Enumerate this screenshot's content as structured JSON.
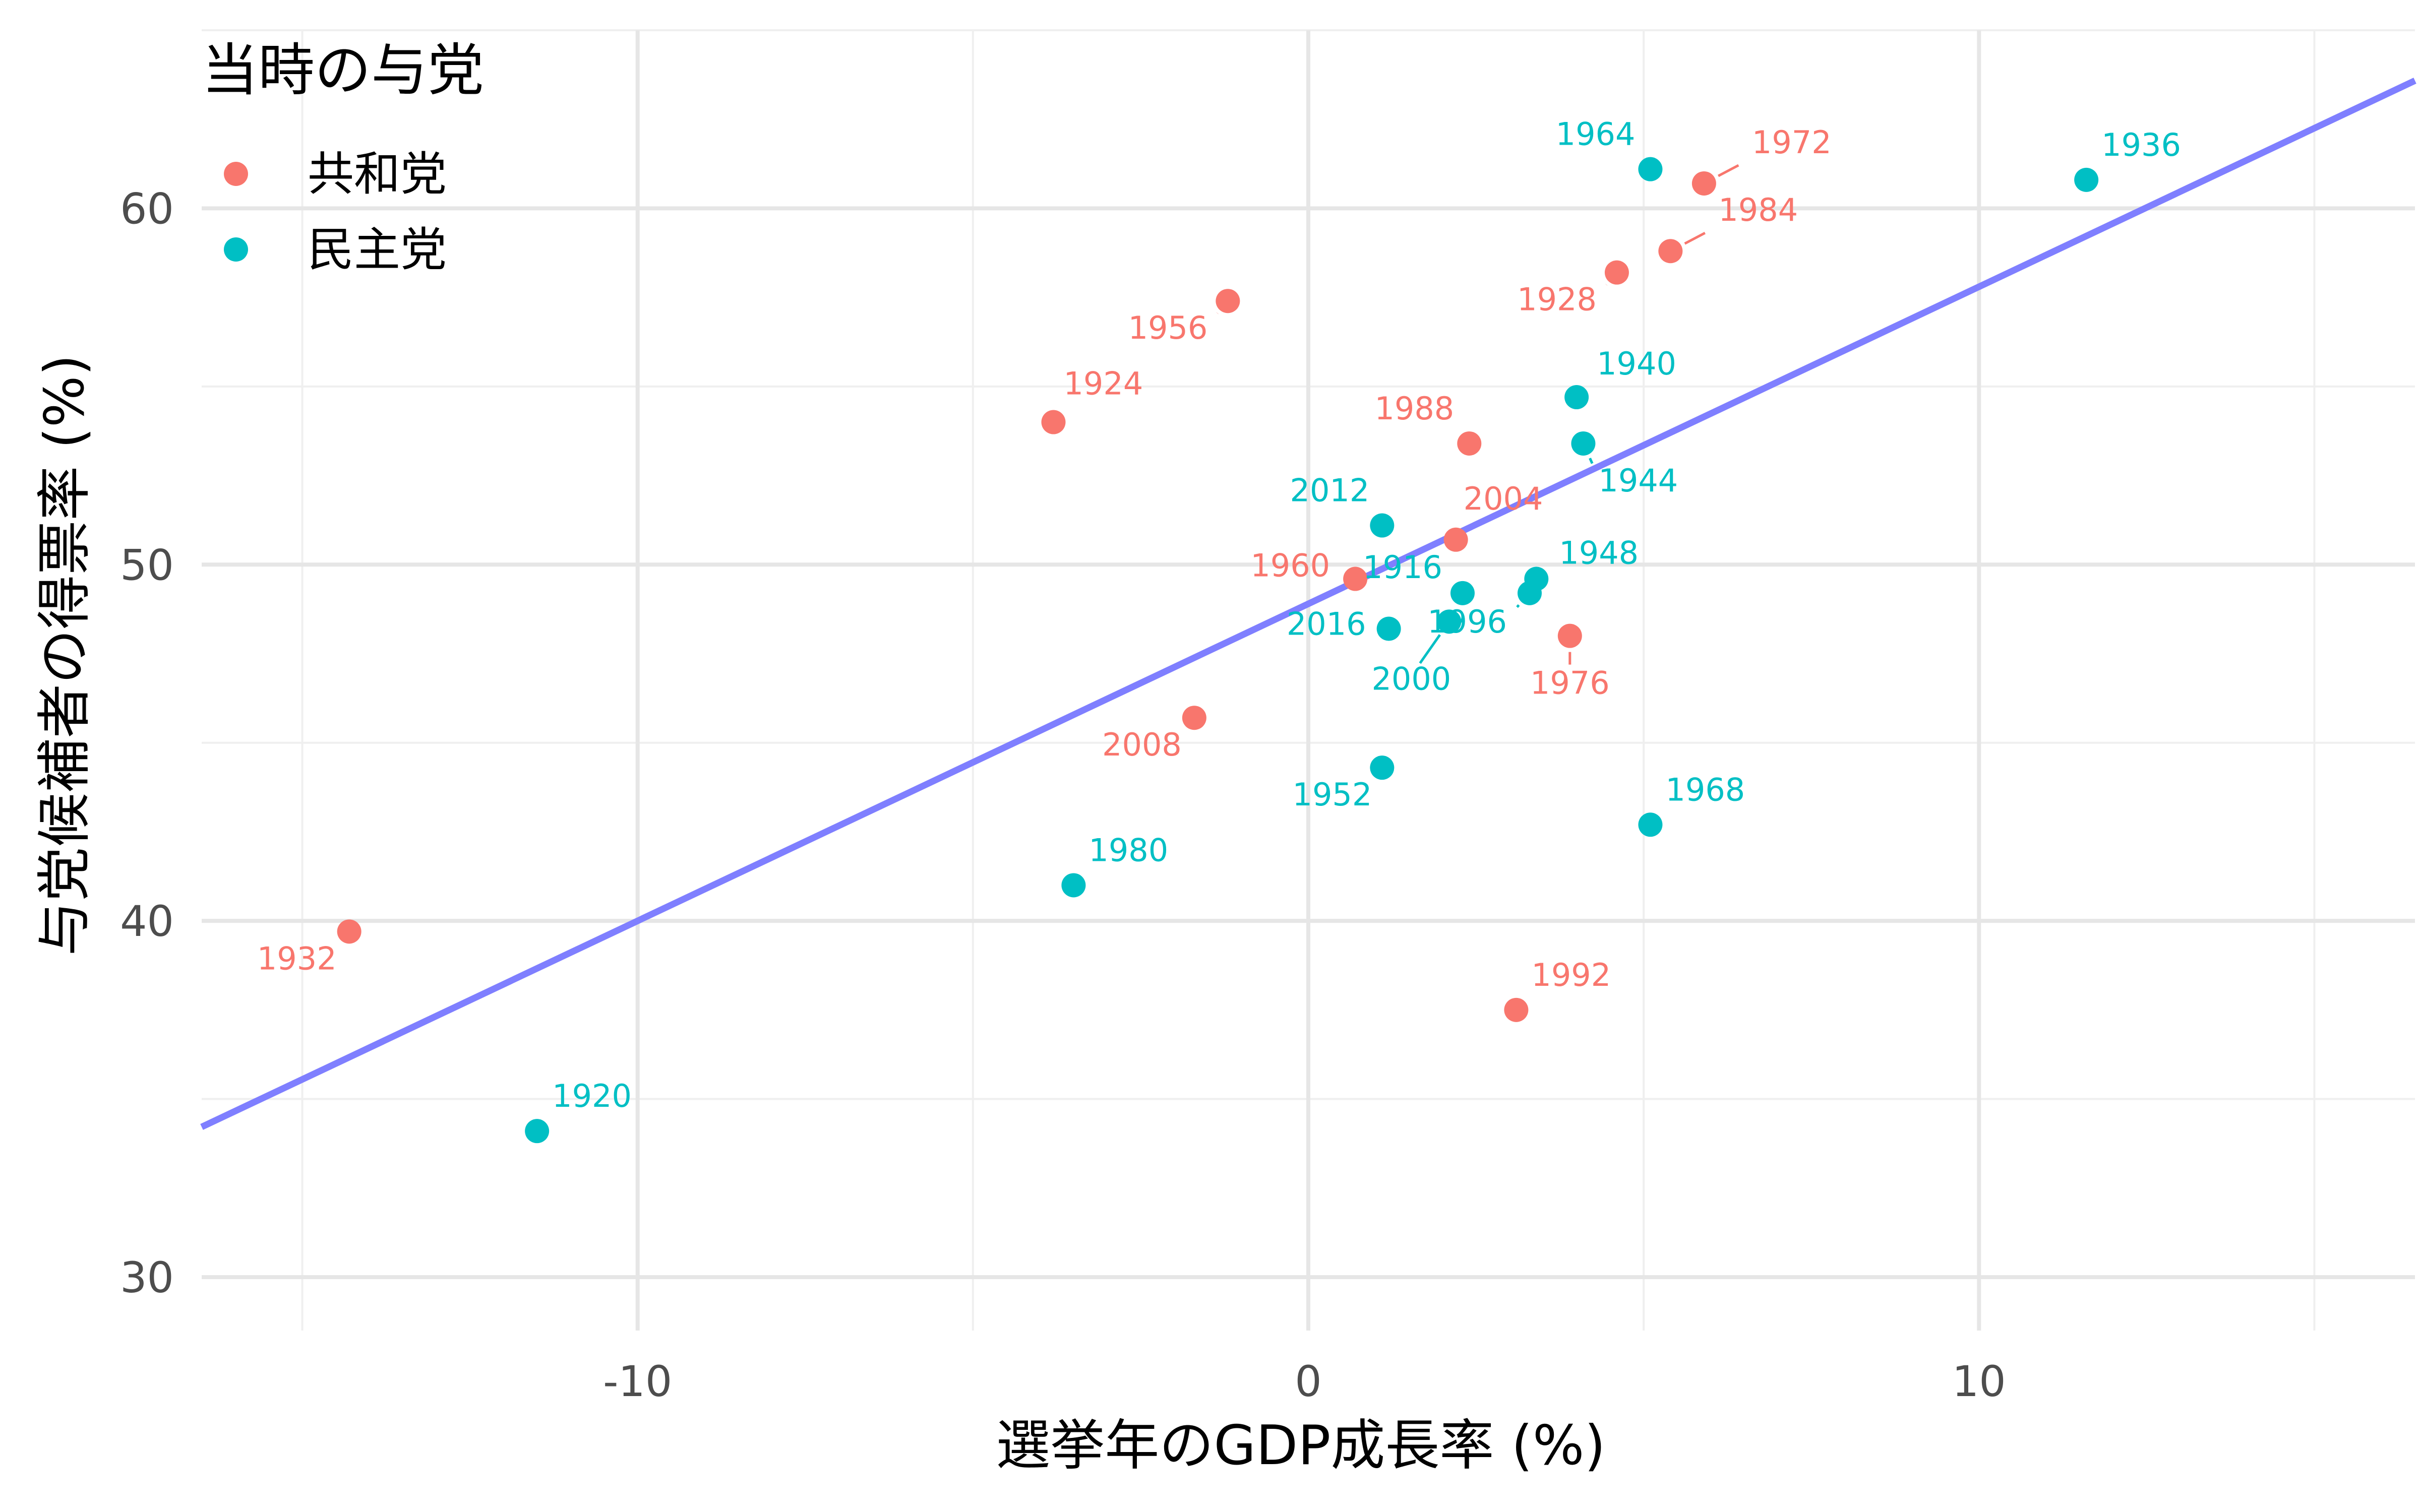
{
  "chart_data": {
    "type": "scatter",
    "xlabel": "選挙年のGDP成長率 (%)",
    "ylabel": "与党候補者の得票率 (%)",
    "xlim": [
      -16.5,
      16.5
    ],
    "ylim": [
      28.5,
      65
    ],
    "x_ticks": [
      -10,
      0,
      10
    ],
    "x_tick_labels": [
      "-10",
      "0",
      "10"
    ],
    "y_ticks": [
      30,
      40,
      50,
      60
    ],
    "y_tick_labels": [
      "30",
      "40",
      "50",
      "60"
    ],
    "grid": true,
    "legend": {
      "title": "当時の与党",
      "position": "top-left",
      "entries": [
        {
          "label": "共和党",
          "color": "#F8766D"
        },
        {
          "label": "民主党",
          "color": "#00BFC4"
        }
      ]
    },
    "trend_line": {
      "color": "#7F7FFF",
      "intercept": 48.9,
      "slope": 0.89
    },
    "series": [
      {
        "name": "共和党",
        "color": "#F8766D",
        "points": [
          {
            "label": "1972",
            "x": 5.9,
            "y": 60.7
          },
          {
            "label": "1984",
            "x": 5.4,
            "y": 58.8
          },
          {
            "label": "1928",
            "x": 4.6,
            "y": 58.2
          },
          {
            "label": "1956",
            "x": -1.2,
            "y": 57.4
          },
          {
            "label": "1924",
            "x": -3.8,
            "y": 54.0
          },
          {
            "label": "1988",
            "x": 2.4,
            "y": 53.4
          },
          {
            "label": "2004",
            "x": 2.2,
            "y": 50.7
          },
          {
            "label": "1960",
            "x": 0.7,
            "y": 49.6
          },
          {
            "label": "1976",
            "x": 3.9,
            "y": 48.0
          },
          {
            "label": "2008",
            "x": -1.7,
            "y": 45.7
          },
          {
            "label": "1932",
            "x": -14.3,
            "y": 39.7
          },
          {
            "label": "1992",
            "x": 3.1,
            "y": 37.5
          }
        ]
      },
      {
        "name": "民主党",
        "color": "#00BFC4",
        "points": [
          {
            "label": "1964",
            "x": 5.1,
            "y": 61.1
          },
          {
            "label": "1936",
            "x": 11.6,
            "y": 60.8
          },
          {
            "label": "1940",
            "x": 4.0,
            "y": 54.7
          },
          {
            "label": "1944",
            "x": 4.1,
            "y": 53.4
          },
          {
            "label": "2012",
            "x": 1.1,
            "y": 51.1
          },
          {
            "label": "1948",
            "x": 3.4,
            "y": 49.6
          },
          {
            "label": "1916",
            "x": 2.3,
            "y": 49.2
          },
          {
            "label": "1996",
            "x": 3.3,
            "y": 49.2
          },
          {
            "label": "2016",
            "x": 1.2,
            "y": 48.2
          },
          {
            "label": "2000",
            "x": 2.1,
            "y": 48.4
          },
          {
            "label": "1952",
            "x": 1.1,
            "y": 44.3
          },
          {
            "label": "1968",
            "x": 5.1,
            "y": 42.7
          },
          {
            "label": "1980",
            "x": -3.5,
            "y": 41.0
          },
          {
            "label": "1920",
            "x": -11.5,
            "y": 34.1
          }
        ]
      }
    ]
  }
}
